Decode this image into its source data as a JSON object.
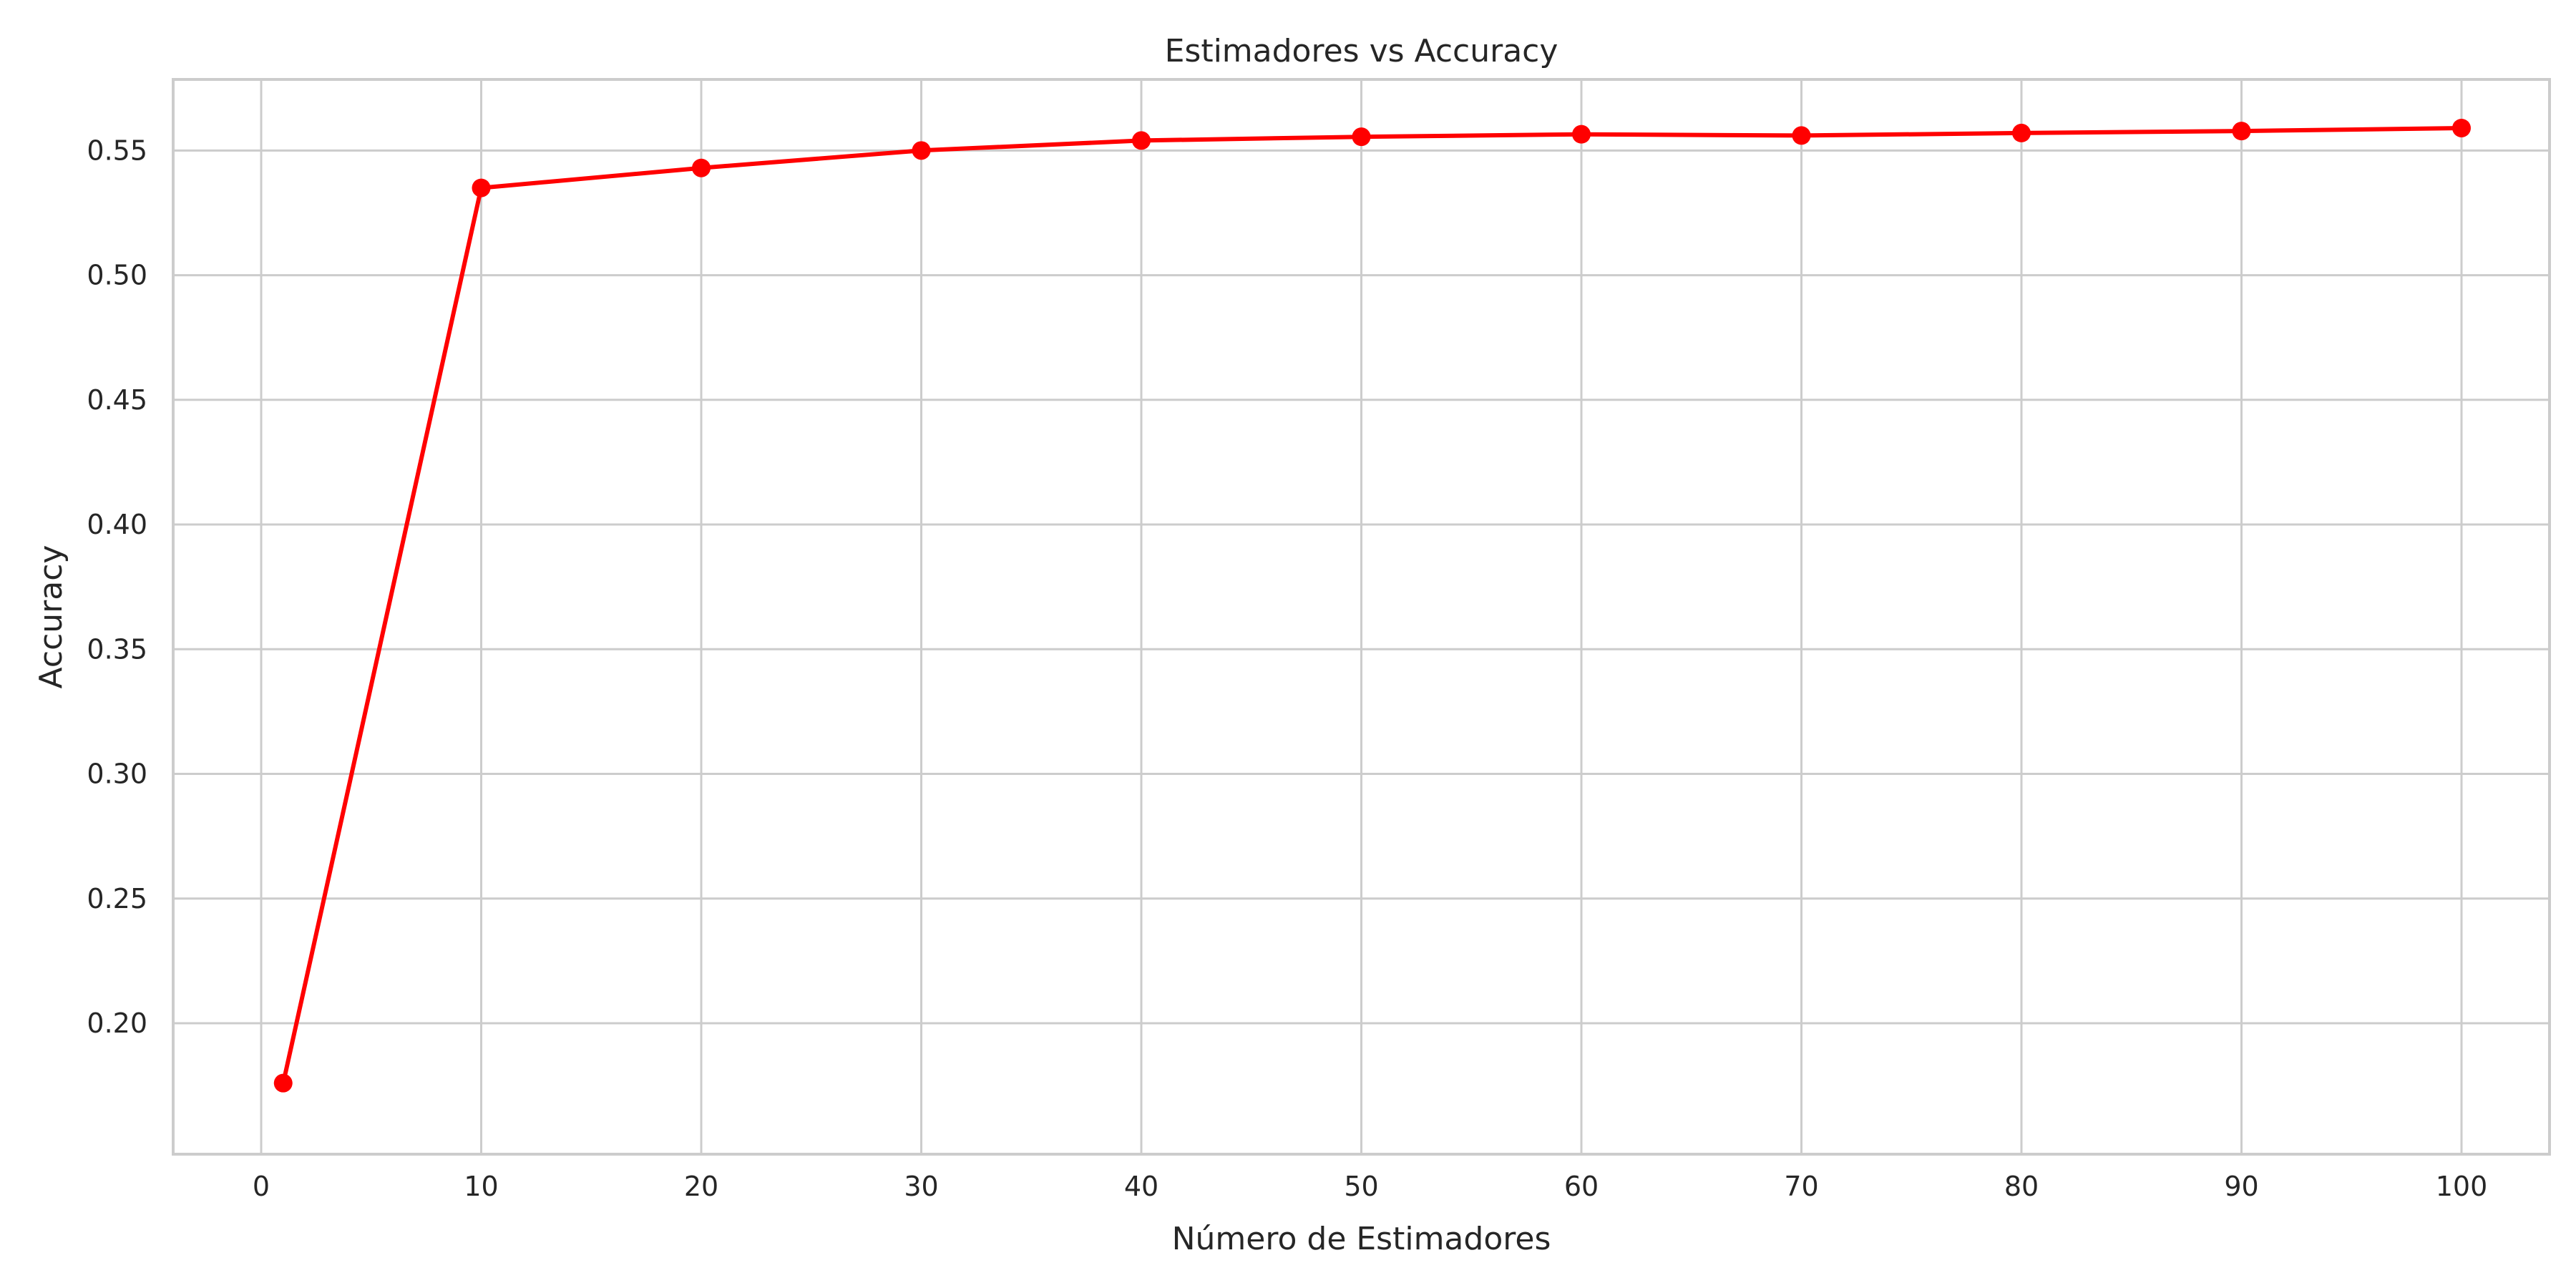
{
  "chart_data": {
    "type": "line",
    "title": "Estimadores vs Accuracy",
    "xlabel": "Número de Estimadores",
    "ylabel": "Accuracy",
    "xlim": [
      -4,
      104
    ],
    "ylim": [
      0.1475,
      0.5785
    ],
    "xticks": [
      0,
      10,
      20,
      30,
      40,
      50,
      60,
      70,
      80,
      90,
      100
    ],
    "yticks": [
      0.2,
      0.25,
      0.3,
      0.35,
      0.4,
      0.45,
      0.5,
      0.55
    ],
    "grid": true,
    "series": [
      {
        "color": "#ff0000",
        "marker": "circle",
        "x": [
          1,
          10,
          20,
          30,
          40,
          50,
          60,
          70,
          80,
          90,
          100
        ],
        "y": [
          0.176,
          0.535,
          0.543,
          0.55,
          0.554,
          0.5555,
          0.5565,
          0.556,
          0.557,
          0.5578,
          0.559
        ]
      }
    ]
  }
}
